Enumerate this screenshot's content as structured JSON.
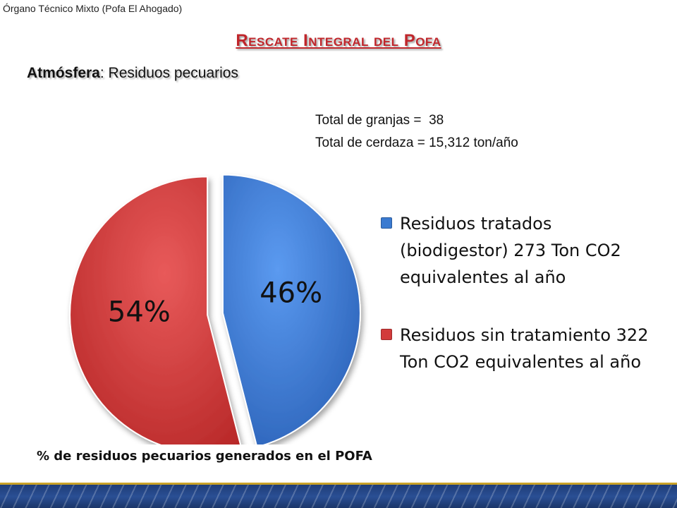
{
  "header": {
    "org_label": "Órgano Técnico Mixto (Pofa El Ahogado)",
    "title": "Rescate Integral del Pofa",
    "subtitle_bold": "Atmósfera",
    "subtitle_rest": ": Residuos pecuarios"
  },
  "stats": {
    "granjas": "Total de granjas =  38",
    "cerdaza": "Total de cerdaza = 15,312 ton/año"
  },
  "chart_data": {
    "type": "pie",
    "title": "",
    "slices": [
      {
        "label": "Residuos tratados (biodigestor) 273 Ton CO2 equivalentes al año",
        "value": 46,
        "display": "46%",
        "color": "#3a7ad0"
      },
      {
        "label": "Residuos sin tratamiento 322 Ton CO2 equivalentes al año",
        "value": 54,
        "display": "54%",
        "color": "#d23b3b"
      }
    ],
    "legend_position": "right",
    "caption": "% de residuos  pecuarios generados en el POFA"
  },
  "colors": {
    "title": "#c0262b",
    "footer_band": "#1f3d78",
    "footer_accent": "#c9a227"
  }
}
